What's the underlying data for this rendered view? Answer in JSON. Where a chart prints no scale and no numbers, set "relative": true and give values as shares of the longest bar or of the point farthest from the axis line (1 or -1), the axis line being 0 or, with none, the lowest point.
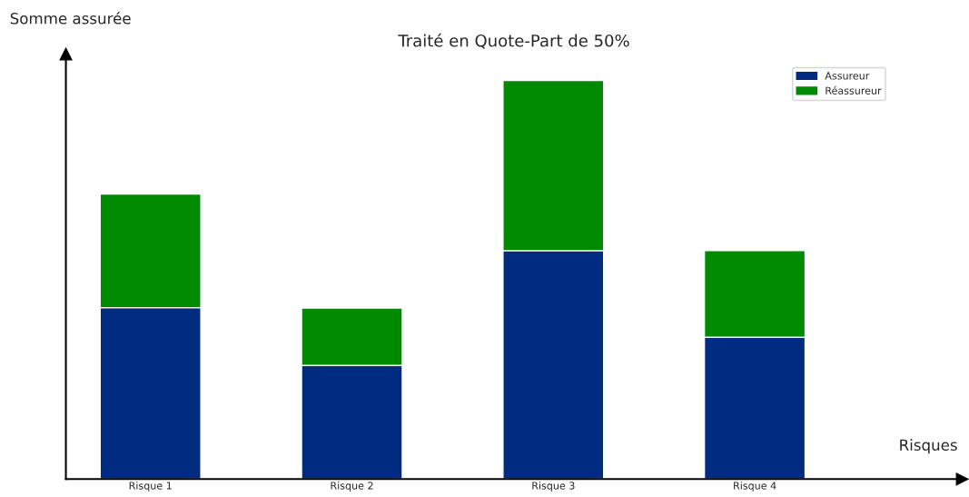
{
  "chart_data": {
    "type": "bar",
    "title": "Traité en Quote-Part de 50%",
    "xlabel": "Risques",
    "ylabel": "Somme assurée",
    "categories": [
      "Risque 1",
      "Risque 2",
      "Risque 3",
      "Risque 4"
    ],
    "stacked": true,
    "relative": true,
    "legend": "top right",
    "grid": false,
    "series": [
      {
        "name": "Assureur",
        "color": "#002b7f",
        "values": [
          0.43,
          0.285,
          0.573,
          0.356
        ]
      },
      {
        "name": "Réassureur",
        "color": "#008a00",
        "values": [
          0.285,
          0.144,
          0.427,
          0.217
        ]
      }
    ]
  }
}
